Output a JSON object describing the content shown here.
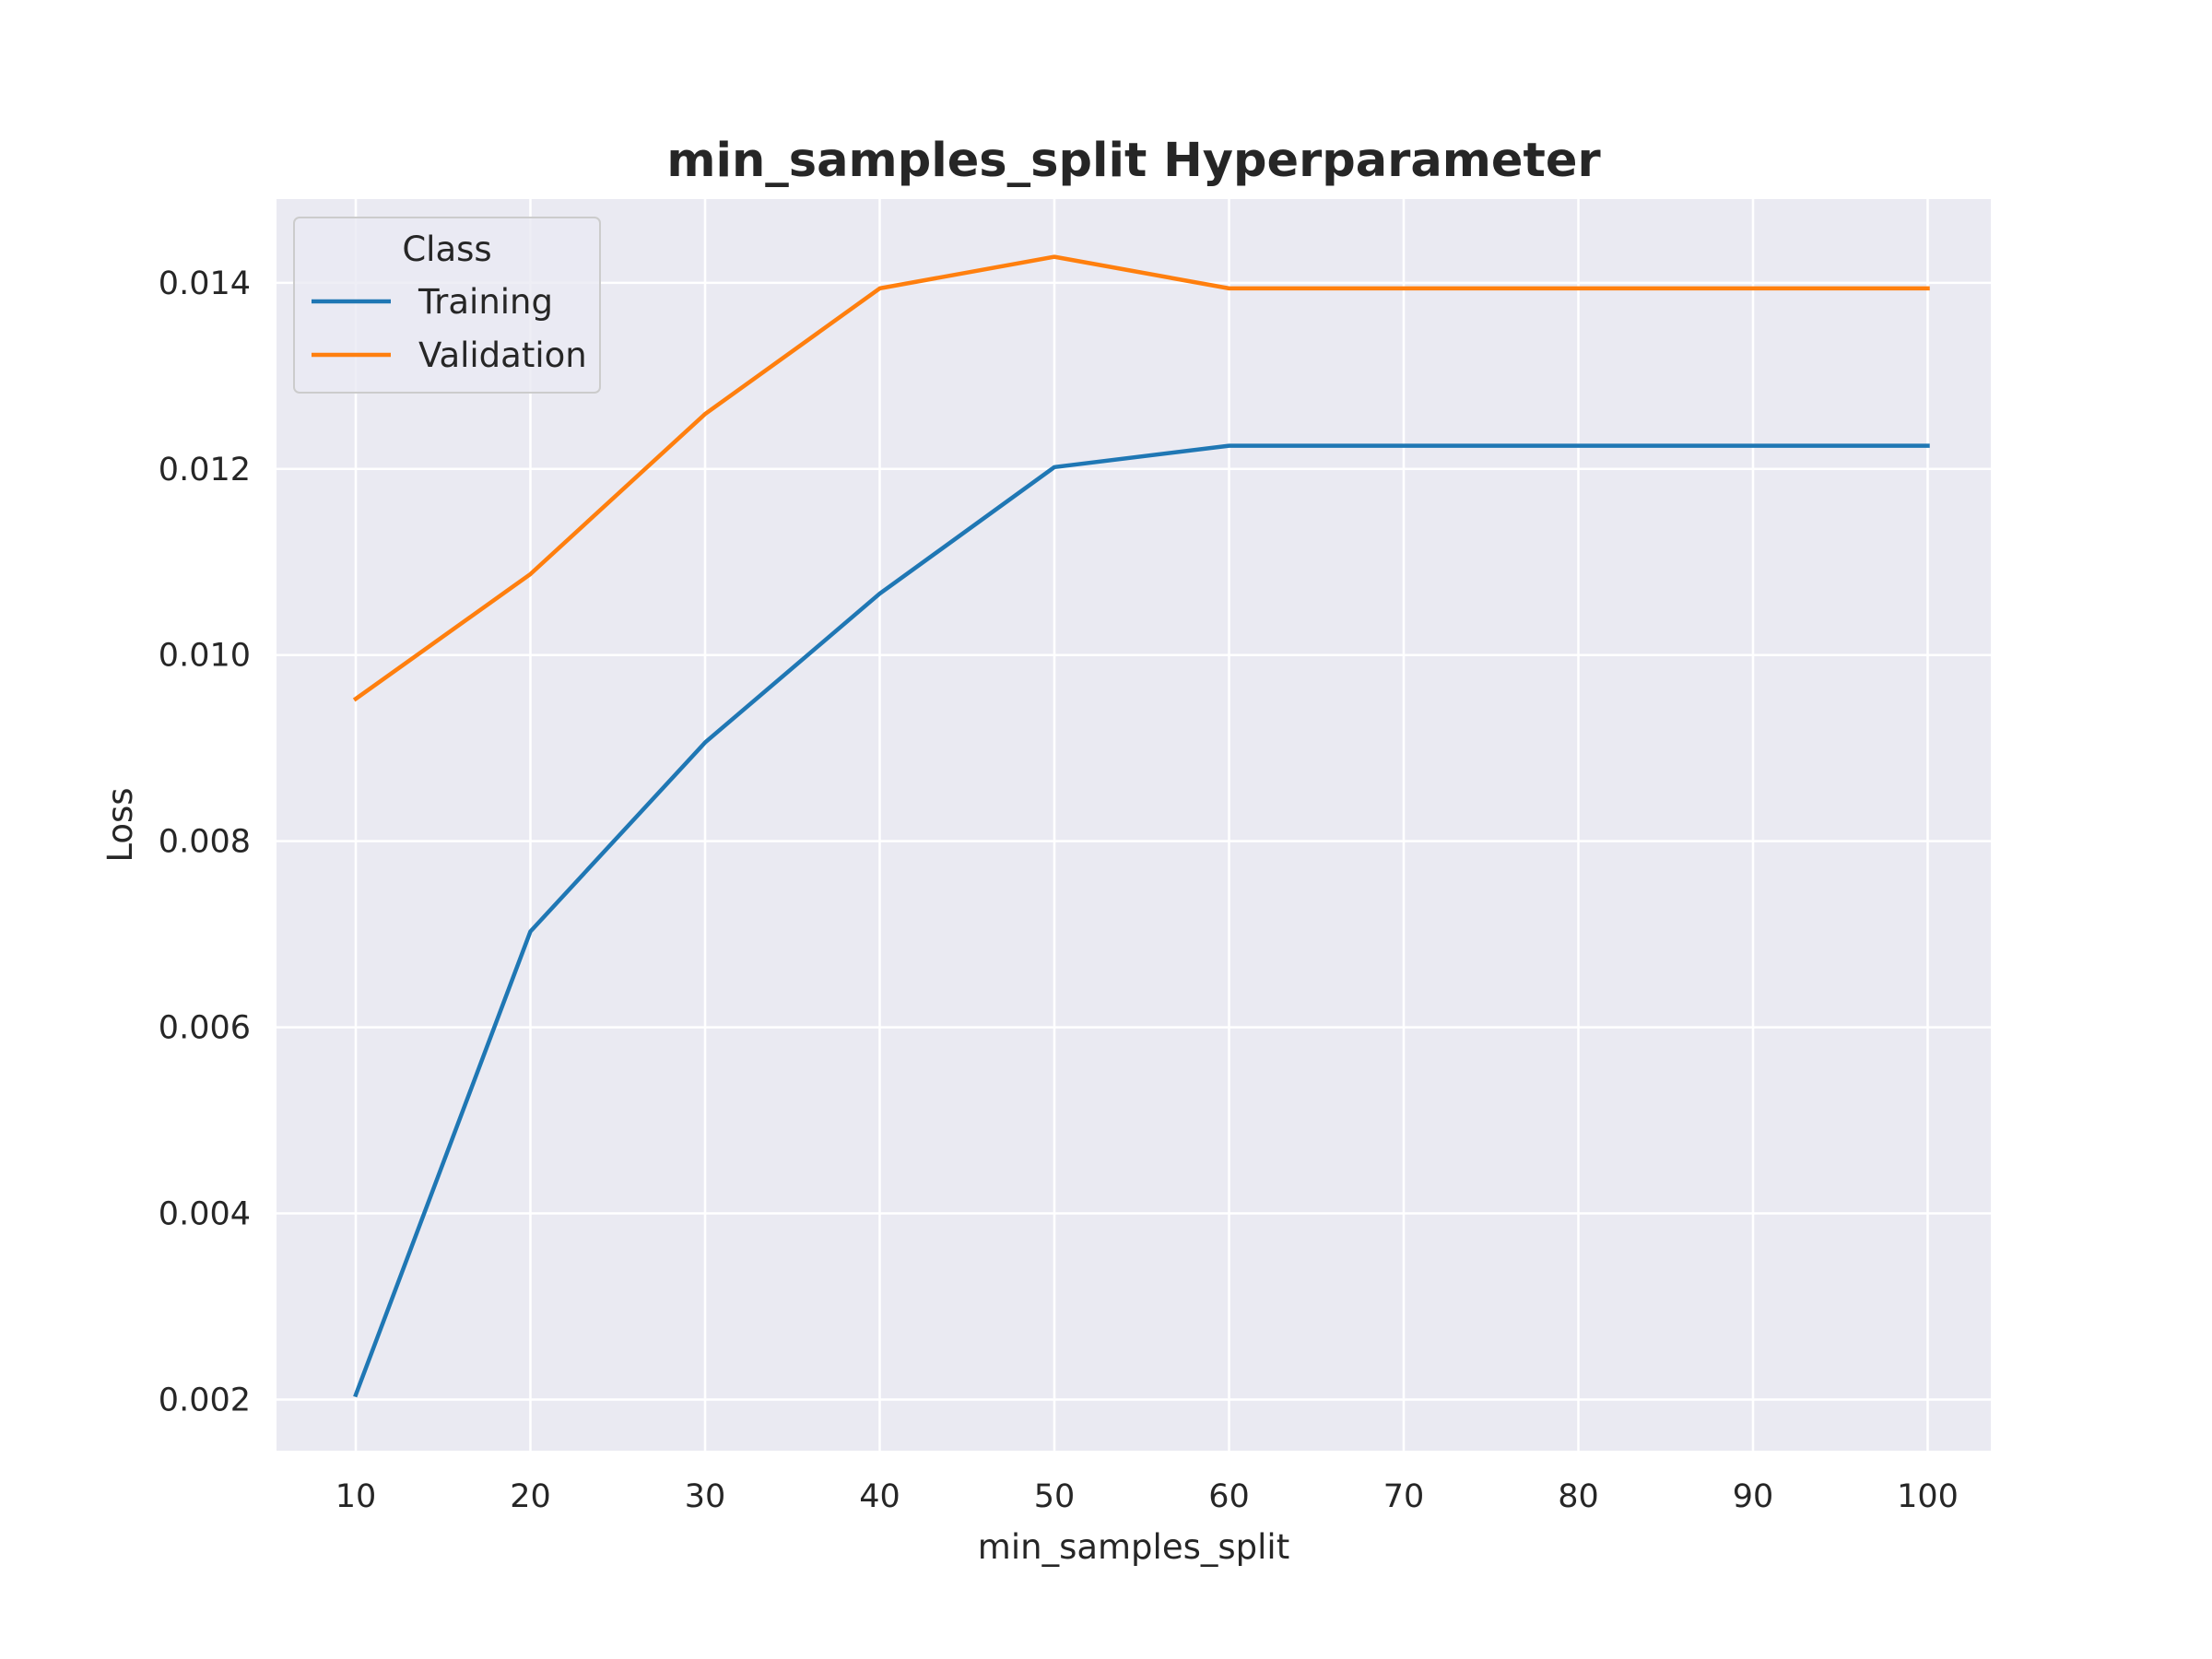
{
  "chart_data": {
    "type": "line",
    "title": "min_samples_split Hyperparameter",
    "xlabel": "min_samples_split",
    "ylabel": "Loss",
    "categories": [
      "10",
      "20",
      "30",
      "40",
      "50",
      "60",
      "70",
      "80",
      "90",
      "100"
    ],
    "ylim": [
      0.00145,
      0.0149
    ],
    "yticks": [
      "0.002",
      "0.004",
      "0.006",
      "0.008",
      "0.010",
      "0.012",
      "0.014"
    ],
    "grid": true,
    "legend": {
      "title": "Class",
      "placement": "top-left"
    },
    "series": [
      {
        "name": "Training",
        "color": "#1f77b4",
        "values": [
          0.00205,
          0.00703,
          0.00906,
          0.01066,
          0.01202,
          0.01225,
          0.01225,
          0.01225,
          0.01225,
          0.01225
        ]
      },
      {
        "name": "Validation",
        "color": "#ff7f0e",
        "values": [
          0.00953,
          0.01087,
          0.01259,
          0.01394,
          0.01428,
          0.01394,
          0.01394,
          0.01394,
          0.01394,
          0.01394
        ]
      }
    ],
    "colors": {
      "plot_background": "#eaeaf2",
      "grid": "#ffffff",
      "text": "#262626"
    }
  }
}
